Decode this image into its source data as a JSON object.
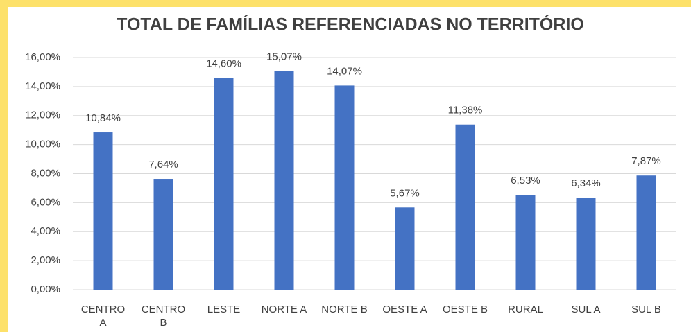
{
  "chart_data": {
    "type": "bar",
    "title": "TOTAL DE FAMÍLIAS REFERENCIADAS NO TERRITÓRIO",
    "categories": [
      "CENTRO A",
      "CENTRO B",
      "LESTE",
      "NORTE A",
      "NORTE B",
      "OESTE A",
      "OESTE B",
      "RURAL",
      "SUL A",
      "SUL B"
    ],
    "values": [
      10.84,
      7.64,
      14.6,
      15.07,
      14.07,
      5.67,
      11.38,
      6.53,
      6.34,
      7.87
    ],
    "value_labels": [
      "10,84%",
      "7,64%",
      "14,60%",
      "15,07%",
      "14,07%",
      "5,67%",
      "11,38%",
      "6,53%",
      "6,34%",
      "7,87%"
    ],
    "color": "#4472c4",
    "ylim": [
      0,
      16
    ],
    "yticks": [
      {
        "value": 0,
        "label": "0,00%"
      },
      {
        "value": 2,
        "label": "2,00%"
      },
      {
        "value": 4,
        "label": "4,00%"
      },
      {
        "value": 6,
        "label": "6,00%"
      },
      {
        "value": 8,
        "label": "8,00%"
      },
      {
        "value": 10,
        "label": "10,00%"
      },
      {
        "value": 12,
        "label": "12,00%"
      },
      {
        "value": 14,
        "label": "14,00%"
      },
      {
        "value": 16,
        "label": "16,00%"
      }
    ],
    "grid": true
  }
}
